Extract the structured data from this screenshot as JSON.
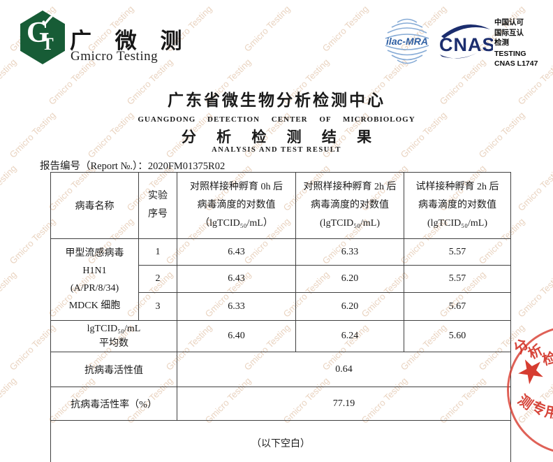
{
  "watermark": {
    "text": "Gmicro Testing"
  },
  "brand": {
    "letters": {
      "g": "G",
      "t": "T",
      "check": "✓"
    },
    "name_cn": "广 微 测",
    "name_en": "Gmicro Testing"
  },
  "accreditation": {
    "ilac_label": "ilac-MRA",
    "cnas_label": "CNAS",
    "cert_lines": [
      "中国认可",
      "国际互认",
      "检测",
      "TESTING",
      "CNAS L1747"
    ]
  },
  "header": {
    "center_cn": "广东省微生物分析检测中心",
    "center_en": "GUANGDONG DETECTION CENTER OF MICROBIOLOGY",
    "result_cn": "分 析 检 测 结 果",
    "result_en": "ANALYSIS AND TEST RESULT",
    "report_label": "报告编号（Report №.）：",
    "report_no": "2020FM01375R02"
  },
  "table": {
    "header": {
      "virus_name": "病毒名称",
      "exp_no": [
        "实验",
        "序号"
      ],
      "col_0h_control": [
        "对照样接种孵育 0h 后",
        "病毒滴度的对数值",
        "（lgTCID₅₀/mL）"
      ],
      "col_2h_control": [
        "对照样接种孵育 2h 后",
        "病毒滴度的对数值",
        "(lgTCID₅₀/mL)"
      ],
      "col_2h_sample": [
        "试样接种孵育 2h 后",
        "病毒滴度的对数值",
        "(lgTCID₅₀/mL)"
      ]
    },
    "virus_cell": [
      "甲型流感病毒",
      "H1N1",
      "(A/PR/8/34)",
      "MDCK 细胞"
    ],
    "rows": [
      {
        "no": "1",
        "v0": "6.43",
        "v1": "6.33",
        "v2": "5.57"
      },
      {
        "no": "2",
        "v0": "6.43",
        "v1": "6.20",
        "v2": "5.57"
      },
      {
        "no": "3",
        "v0": "6.33",
        "v1": "6.20",
        "v2": "5.67"
      }
    ],
    "average": {
      "label": [
        "lgTCID₅₀/mL",
        "平均数"
      ],
      "v0": "6.40",
      "v1": "6.24",
      "v2": "5.60"
    },
    "activity_value": {
      "label": "抗病毒活性值",
      "value": "0.64"
    },
    "activity_rate": {
      "label": "抗病毒活性率（%）",
      "value": "77.19"
    },
    "blank_note": "（以下空白）"
  },
  "stamp": {
    "arc_top": "分析检",
    "arc_bottom": "测专用",
    "star": "★"
  }
}
